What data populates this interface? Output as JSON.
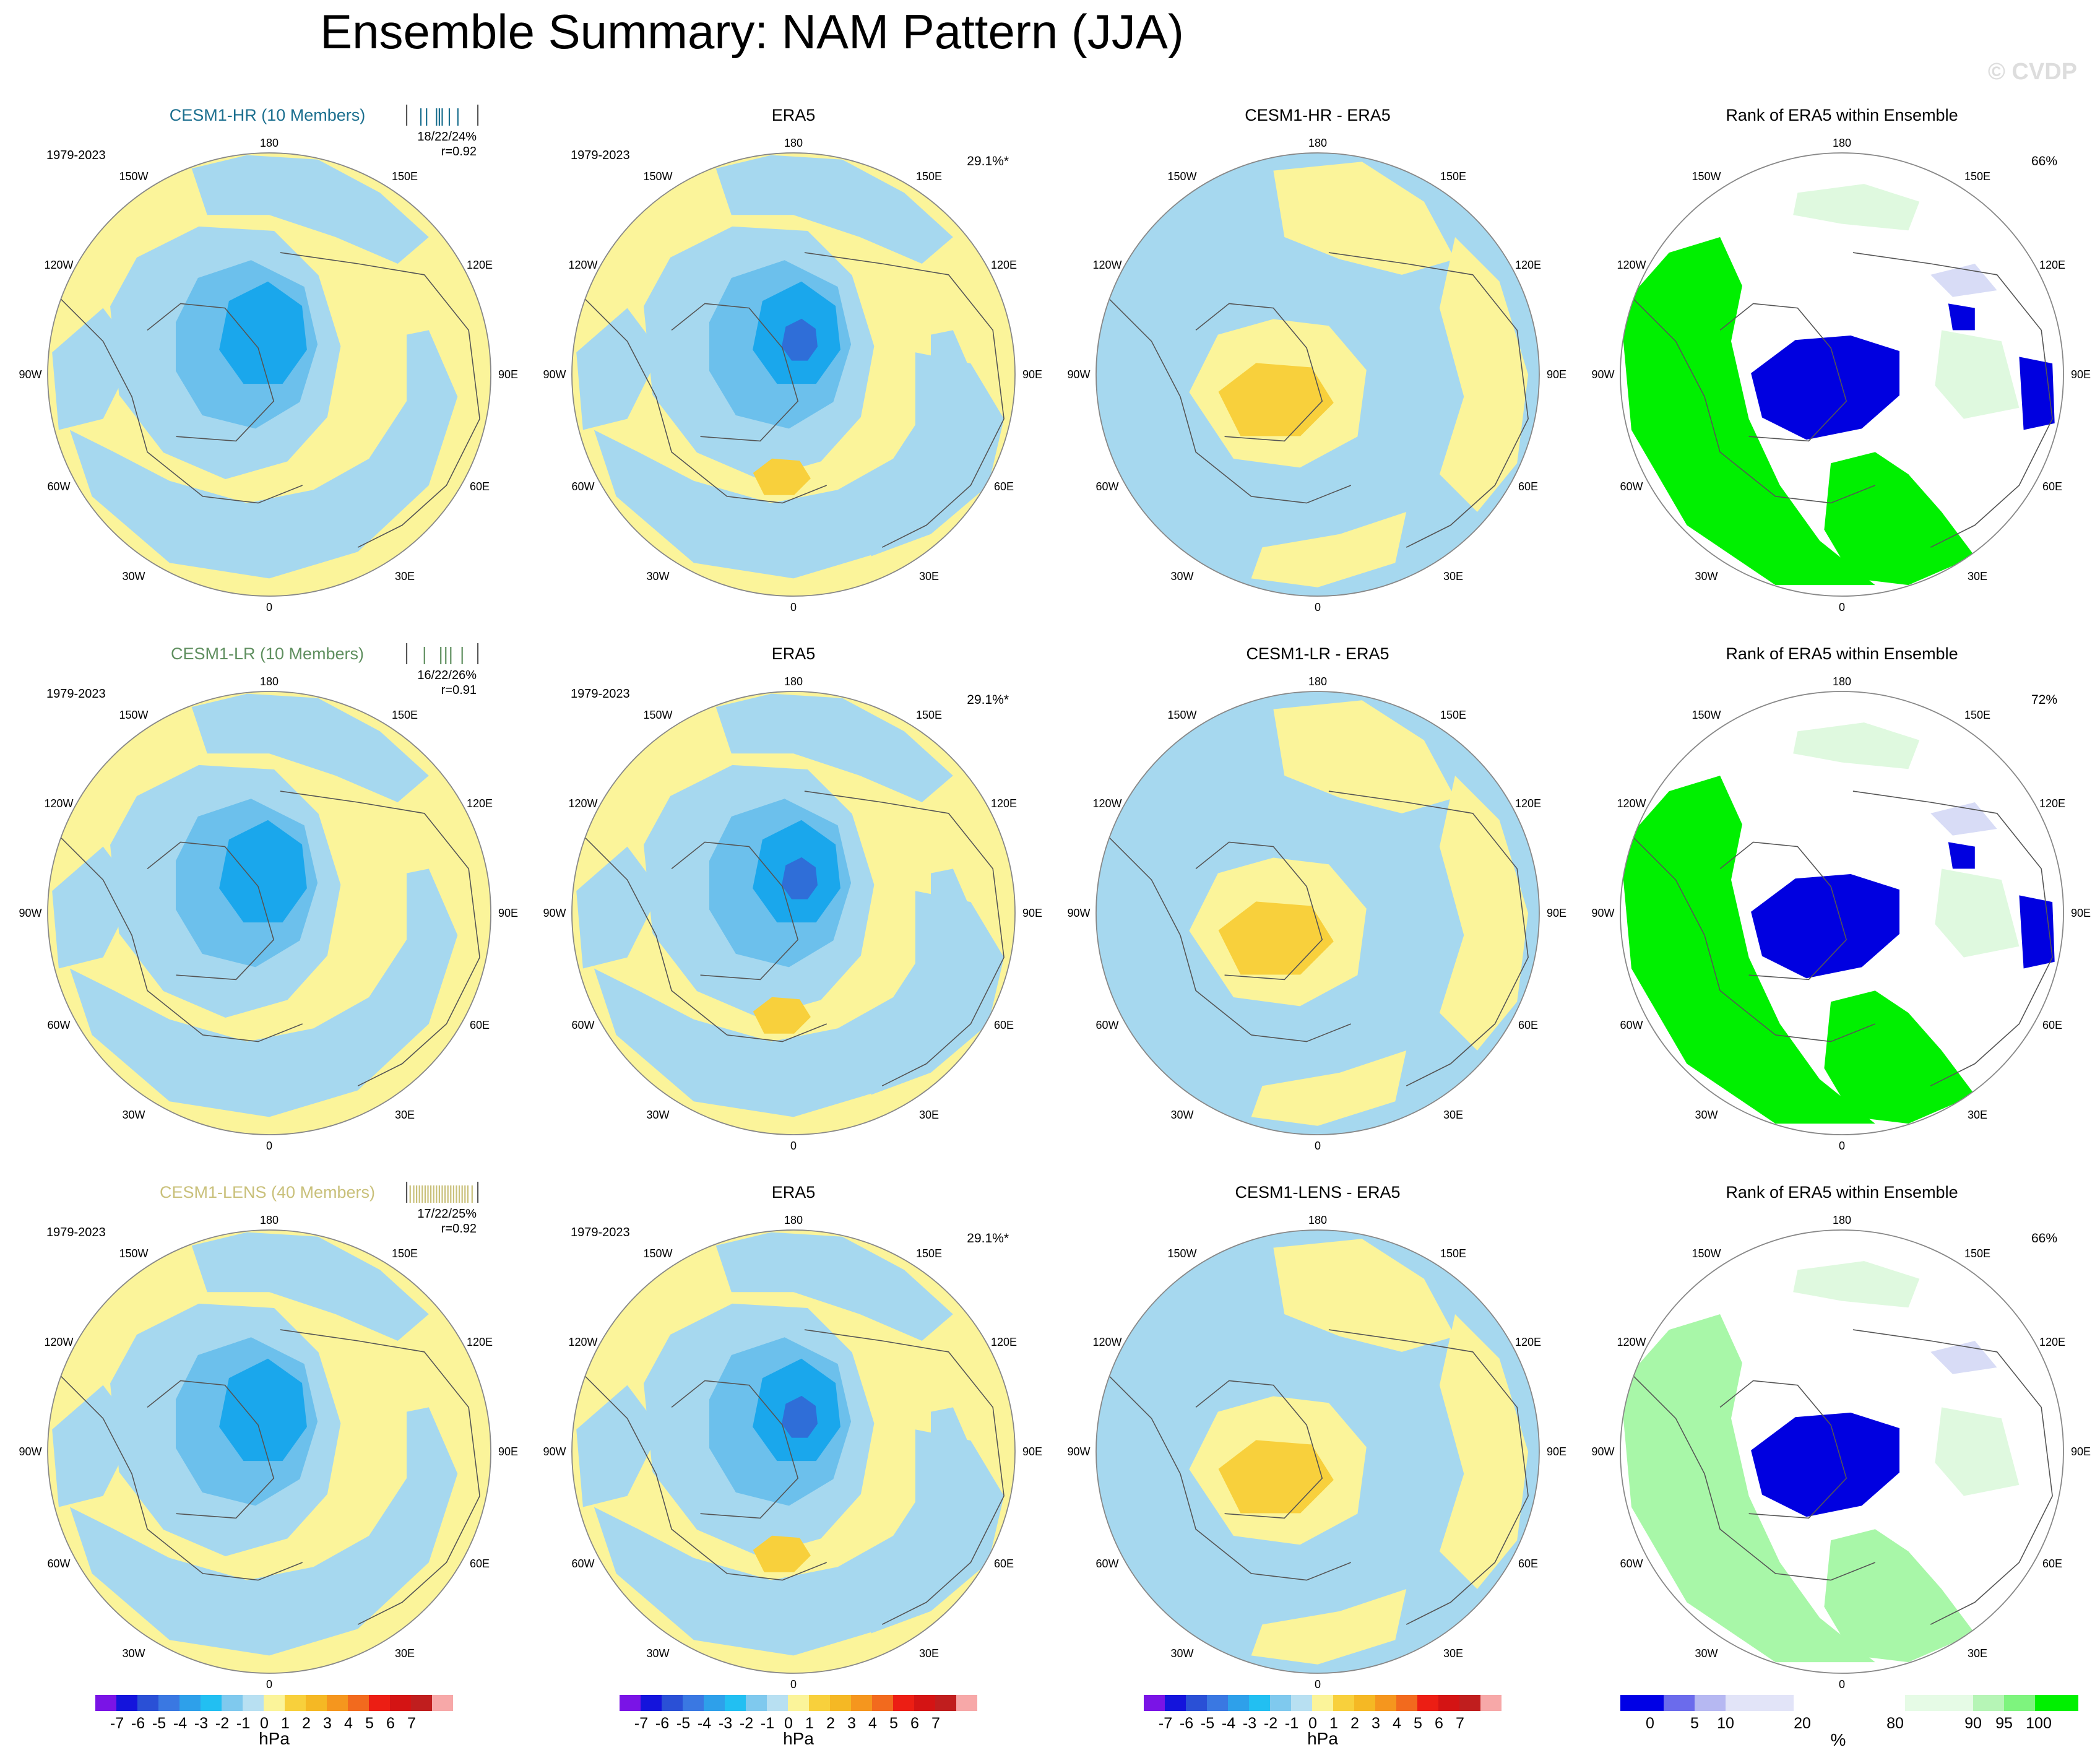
{
  "figure": {
    "title": "Ensemble Summary: NAM Pattern (JJA)",
    "watermark": "© CVDP"
  },
  "lon_labels": {
    "deg180": "180",
    "w150": "150W",
    "e150": "150E",
    "w120": "120W",
    "e120": "120E",
    "w90": "90W",
    "e90": "90E",
    "w60": "60W",
    "e60": "60E",
    "w30": "30W",
    "e30": "30E",
    "deg0": "0"
  },
  "colors": {
    "ocean_blue": "#a6d8ef",
    "pale_yellow": "#fbf49a",
    "mid_blue": "#6cc0ec",
    "deep_sky": "#1aa7ec",
    "dark_blue": "#2f6ed8",
    "gold": "#f8d03c",
    "orange": "#f5b824",
    "rank_green": "#00f000",
    "rank_lightgreen": "#a8f7a8",
    "rank_palegreen": "#dff9df",
    "rank_blue": "#0000e0",
    "rank_lavender": "#d8dcf6",
    "coast": "#555555"
  },
  "chart_data": [
    {
      "type": "heatmap",
      "row": 0,
      "col": 0,
      "field": "model",
      "title": "CESM1-HR (10 Members)",
      "title_color": "#1b6f8f",
      "period": "1979-2023",
      "stats": "18/22/24%",
      "corr": "r=0.92",
      "members_ticks": [
        0.0,
        0.2,
        0.28,
        0.42,
        0.46,
        0.5,
        0.6,
        0.72,
        1.0
      ]
    },
    {
      "type": "heatmap",
      "row": 0,
      "col": 1,
      "field": "obs",
      "title": "ERA5",
      "period": "1979-2023",
      "pct": "29.1%*"
    },
    {
      "type": "heatmap",
      "row": 0,
      "col": 2,
      "field": "diff",
      "title": "CESM1-HR - ERA5"
    },
    {
      "type": "heatmap",
      "row": 0,
      "col": 3,
      "field": "rank",
      "title": "Rank of ERA5 within Ensemble",
      "pct": "66%"
    },
    {
      "type": "heatmap",
      "row": 1,
      "col": 0,
      "field": "model",
      "title": "CESM1-LR (10 Members)",
      "title_color": "#5f8f5f",
      "period": "1979-2023",
      "stats": "16/22/26%",
      "corr": "r=0.91",
      "members_ticks": [
        0.0,
        0.25,
        0.48,
        0.55,
        0.62,
        0.78,
        1.0
      ]
    },
    {
      "type": "heatmap",
      "row": 1,
      "col": 1,
      "field": "obs",
      "title": "ERA5",
      "period": "1979-2023",
      "pct": "29.1%*"
    },
    {
      "type": "heatmap",
      "row": 1,
      "col": 2,
      "field": "diff",
      "title": "CESM1-LR - ERA5"
    },
    {
      "type": "heatmap",
      "row": 1,
      "col": 3,
      "field": "rank",
      "title": "Rank of ERA5 within Ensemble",
      "pct": "72%"
    },
    {
      "type": "heatmap",
      "row": 2,
      "col": 0,
      "field": "model",
      "title": "CESM1-LENS (40 Members)",
      "title_color": "#c9c07a",
      "period": "1979-2023",
      "stats": "17/22/25%",
      "corr": "r=0.92",
      "members_ticks": [
        0.0,
        0.05,
        0.1,
        0.14,
        0.18,
        0.22,
        0.26,
        0.3,
        0.34,
        0.38,
        0.42,
        0.46,
        0.5,
        0.54,
        0.58,
        0.62,
        0.66,
        0.7,
        0.74,
        0.78,
        0.82,
        0.86,
        0.92,
        1.0
      ]
    },
    {
      "type": "heatmap",
      "row": 2,
      "col": 1,
      "field": "obs",
      "title": "ERA5",
      "period": "1979-2023",
      "pct": "29.1%*"
    },
    {
      "type": "heatmap",
      "row": 2,
      "col": 2,
      "field": "diff",
      "title": "CESM1-LENS - ERA5"
    },
    {
      "type": "heatmap",
      "row": 2,
      "col": 3,
      "field": "rank",
      "title": "Rank of ERA5 within Ensemble",
      "pct": "66%"
    }
  ],
  "colorbars": [
    {
      "unit": "hPa",
      "colors": [
        "#7a14e6",
        "#1414dc",
        "#2a50d6",
        "#3a78e2",
        "#2ea0ea",
        "#22bff2",
        "#7fc9ee",
        "#b8e0f2",
        "#fbf49a",
        "#f8d03c",
        "#f5b824",
        "#f5961e",
        "#f26a1e",
        "#ec1e14",
        "#d41414",
        "#c01e1e",
        "#f7a8a8"
      ],
      "labels": [
        "-7",
        "-6",
        "-5",
        "-4",
        "-3",
        "-2",
        "-1",
        "0",
        "1",
        "2",
        "3",
        "4",
        "5",
        "6",
        "7"
      ]
    },
    {
      "unit": "%",
      "colors": [
        "#0000e6",
        "#6b6bec",
        "#b6b8f2",
        "#e2e4f8",
        "#ffffff",
        "#ffffff",
        "#e6fbe6",
        "#b6f5b6",
        "#7ef47e",
        "#00f000"
      ],
      "labels": [
        "0",
        "5",
        "10",
        "20",
        "80",
        "90",
        "95",
        "100"
      ]
    }
  ]
}
